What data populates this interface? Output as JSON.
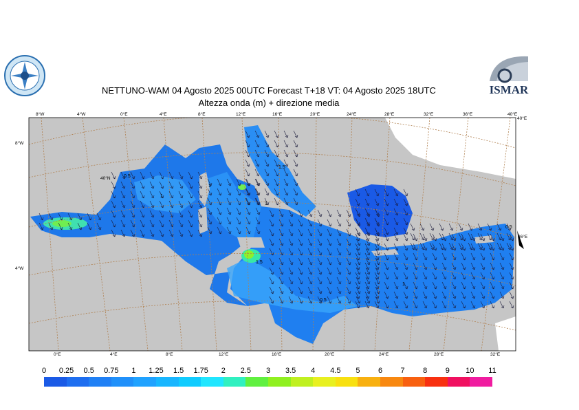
{
  "title_line1": "NETTUNO-WAM  04   Agosto  2025 00UTC Forecast T+18 VT: 04   Agosto  2025 18UTC",
  "title_line2": "Altezza onda (m) + direzione media",
  "logo_right_text": "ISMAR",
  "top_lon_labels": [
    "8°W",
    "4°W",
    "0°E",
    "4°E",
    "8°E",
    "12°E",
    "16°E",
    "20°E",
    "24°E",
    "28°E",
    "32°E",
    "36°E",
    "40°E"
  ],
  "bottom_lon_labels": [
    "0°E",
    "4°E",
    "8°E",
    "12°E",
    "16°E",
    "20°E",
    "24°E",
    "28°E",
    "32°E"
  ],
  "left_lat_labels": [
    "8°W",
    "40°N",
    "4°W"
  ],
  "right_lat_labels": [
    "40°E",
    "36°E"
  ],
  "contour_labels": [
    "0.5",
    "1",
    "1",
    "1.5",
    "1",
    "1",
    "0.5",
    "0.5",
    "1.5",
    "1",
    "1",
    "0.5",
    "1"
  ],
  "colorbar": {
    "labels": [
      "0",
      "0.25",
      "0.5",
      "0.75",
      "1",
      "1.25",
      "1.5",
      "1.75",
      "2",
      "2.5",
      "3",
      "3.5",
      "4",
      "4.5",
      "5",
      "6",
      "7",
      "8",
      "9",
      "10",
      "11"
    ],
    "colors": [
      "#1a5ae6",
      "#1e6ef0",
      "#2080f5",
      "#2090fa",
      "#20a2ff",
      "#18b6ff",
      "#10ccff",
      "#20e6ff",
      "#30f0c0",
      "#60f040",
      "#90f020",
      "#c0f020",
      "#e8f020",
      "#f8e010",
      "#f8b010",
      "#f88810",
      "#f86010",
      "#f83010",
      "#f01060",
      "#f01ca0"
    ]
  }
}
